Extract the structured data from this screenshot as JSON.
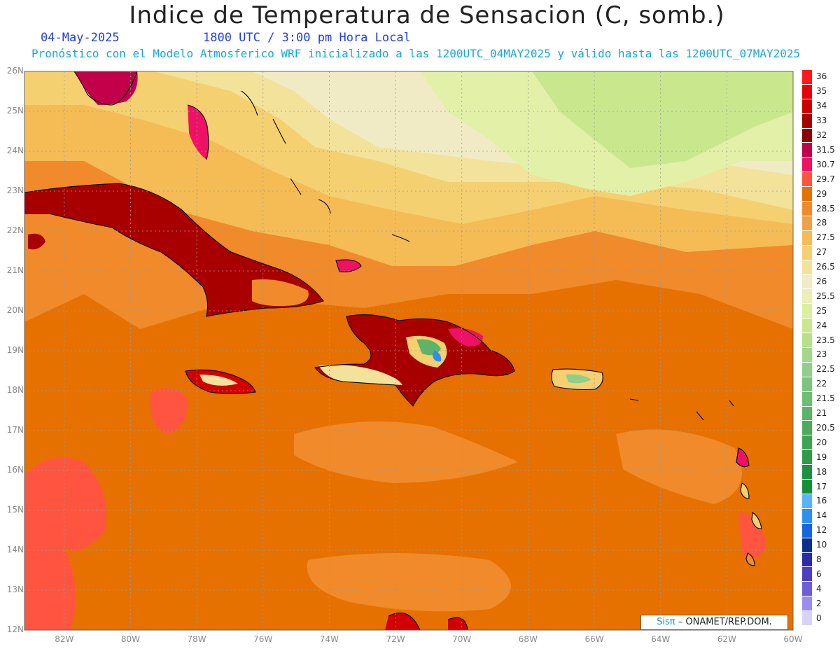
{
  "header": {
    "title": "Indice de Temperatura de Sensacion (C, somb.)",
    "date": "04-May-2025",
    "time": "1800 UTC / 3:00 pm Hora Local",
    "model_info": "Pronóstico con el Modelo Atmosferico WRF inicializado a las 1200UTC_04MAY2025 y válido hasta las  1200UTC_07MAY2025"
  },
  "axes": {
    "lat_labels": [
      "26N",
      "25N",
      "24N",
      "23N",
      "22N",
      "21N",
      "20N",
      "19N",
      "18N",
      "17N",
      "16N",
      "15N",
      "14N",
      "13N",
      "12N"
    ],
    "lon_labels": [
      "82W",
      "80W",
      "78W",
      "76W",
      "74W",
      "72W",
      "70W",
      "68W",
      "66W",
      "64W",
      "62W",
      "60W"
    ],
    "lat_range": [
      12,
      26
    ],
    "lon_range": [
      -83.2,
      -60
    ]
  },
  "colorbar": {
    "labels": [
      "36",
      "35",
      "34",
      "33",
      "32",
      "31.5",
      "30.7",
      "29.7",
      "29",
      "28.5",
      "28",
      "27.5",
      "27",
      "26.5",
      "26",
      "25.5",
      "25",
      "24",
      "23.5",
      "23",
      "22.5",
      "22",
      "21.5",
      "21",
      "20.5",
      "20",
      "19",
      "18",
      "17",
      "16",
      "14",
      "12",
      "10",
      "8",
      "6",
      "4",
      "2",
      "0"
    ],
    "colors": [
      "#ff1a1a",
      "#e8000b",
      "#cc0000",
      "#a80000",
      "#8b0000",
      "#c2004a",
      "#ee1166",
      "#ff5540",
      "#e67100",
      "#f08a2a",
      "#f0a145",
      "#f5bb55",
      "#f5d070",
      "#f3e29a",
      "#f1ebc5",
      "#eaf0b8",
      "#dcef9e",
      "#c9e88e",
      "#b6e08c",
      "#a3d88c",
      "#8fce8c",
      "#7dc57f",
      "#6dbe72",
      "#5cb466",
      "#4cac5c",
      "#3ea352",
      "#2e9a4a",
      "#1f8f42",
      "#159038",
      "#58b4f7",
      "#2e8ff0",
      "#1565e0",
      "#0d2f8c",
      "#2b2aa8",
      "#4d3fc2",
      "#6d5ed6",
      "#9c8cef",
      "#d9d3f7"
    ]
  },
  "credit": {
    "logo_text": "Sisπ",
    "label": "– ONAMET/REP.DOM."
  },
  "map_colors": {
    "ocean_warm": "#e67100",
    "ocean_mid": "#f08a2a",
    "ocean_cool": "#f5bb55",
    "north_light": "#f1ebc5",
    "north_green": "#c6e68a",
    "land_hot": "#8b0000",
    "land_red": "#d30000",
    "patch_red": "#ff5540",
    "mountain_green": "#5cb466",
    "mountain_blue": "#2e8ff0"
  }
}
